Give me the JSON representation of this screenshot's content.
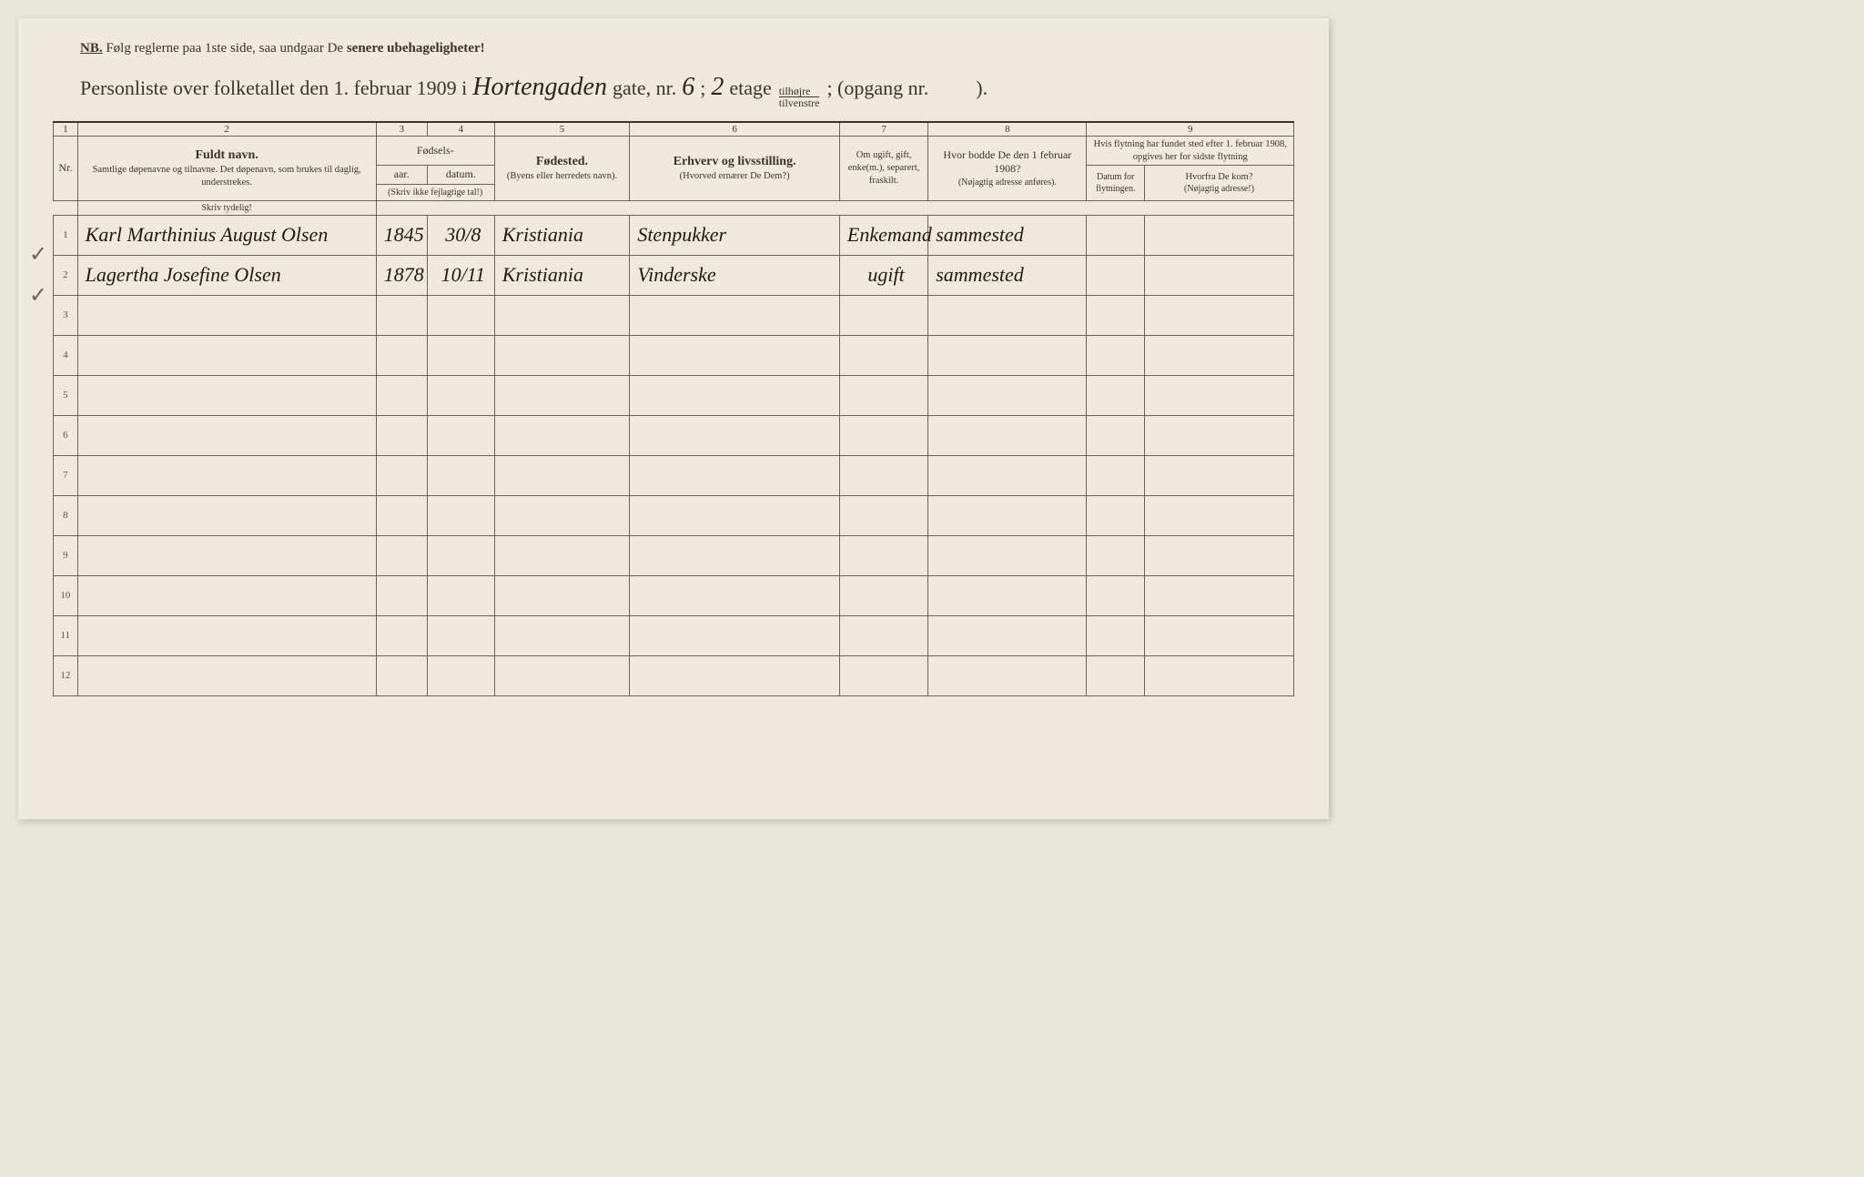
{
  "nb": {
    "prefix": "NB.",
    "text1": "Følg reglerne paa 1ste side, saa undgaar De ",
    "bold": "senere ubehageligheter!"
  },
  "title": {
    "t1": "Personliste over folketallet den 1. februar 1909 i",
    "street": "Hortengaden",
    "t2": "gate, nr.",
    "nr": "6",
    "t3": ";",
    "floor": "2",
    "t4": "etage",
    "side_top": "tilhøjre",
    "side_bot": "tilvenstre",
    "t5": "; (opgang nr.",
    "t6": ")."
  },
  "colnums": [
    "1",
    "2",
    "3",
    "4",
    "5",
    "6",
    "7",
    "8",
    "9"
  ],
  "headers": {
    "name_main": "Fuldt navn.",
    "name_sub": "Samtlige døpenavne og tilnavne. Det døpenavn, som brukes til daglig, understrekes.",
    "name_hint": "Skriv tydelig!",
    "birth_group": "Fødsels-",
    "year": "aar.",
    "date": "datum.",
    "birth_note": "(Skriv ikke fejlagtige tal!)",
    "place_main": "Fødested.",
    "place_sub": "(Byens eller herredets navn).",
    "occ_main": "Erhverv og livsstilling.",
    "occ_sub": "(Hvorved ernærer De Dem?)",
    "marital": "Om ugift, gift, enke(m.), separert, fraskilt.",
    "addr_main": "Hvor bodde De den 1 februar 1908?",
    "addr_sub": "(Nøjagtig adresse anføres).",
    "move_top": "Hvis flytning har fundet sted efter 1. februar 1908, opgives her for sidste flytning",
    "move_date": "Datum for flytningen.",
    "move_from_main": "Hvorfra De kom?",
    "move_from_sub": "(Nøjagtig adresse!)"
  },
  "rows": [
    {
      "n": "1",
      "name": "Karl Marthinius August Olsen",
      "year": "1845",
      "date": "30/8",
      "place": "Kristiania",
      "occ": "Stenpukker",
      "marital": "Enkemand",
      "addr": "sammested",
      "mdate": "",
      "mfrom": ""
    },
    {
      "n": "2",
      "name": "Lagertha Josefine Olsen",
      "year": "1878",
      "date": "10/11",
      "place": "Kristiania",
      "occ": "Vinderske",
      "marital": "ugift",
      "addr": "sammested",
      "mdate": "",
      "mfrom": ""
    },
    {
      "n": "3"
    },
    {
      "n": "4"
    },
    {
      "n": "5"
    },
    {
      "n": "6"
    },
    {
      "n": "7"
    },
    {
      "n": "8"
    },
    {
      "n": "9"
    },
    {
      "n": "10"
    },
    {
      "n": "11"
    },
    {
      "n": "12"
    }
  ]
}
